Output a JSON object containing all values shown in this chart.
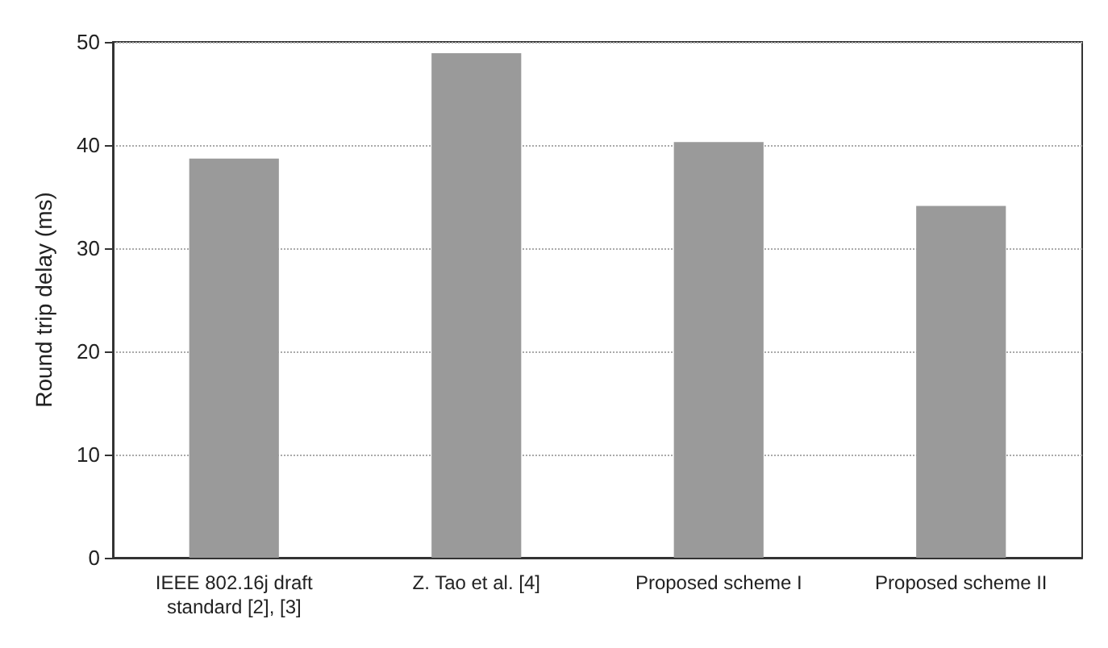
{
  "chart_data": {
    "type": "bar",
    "ylabel": "Round trip delay (ms)",
    "categories": [
      "IEEE 802.16j draft\nstandard [2], [3]",
      "Z. Tao et al. [4]",
      "Proposed scheme I",
      "Proposed scheme II"
    ],
    "values": [
      38.7,
      48.9,
      40.3,
      34.1
    ],
    "color": "#9a9a9a",
    "ylim": [
      0,
      50
    ],
    "yticks": [
      0,
      10,
      20,
      30,
      40,
      50
    ],
    "grid": "y"
  }
}
